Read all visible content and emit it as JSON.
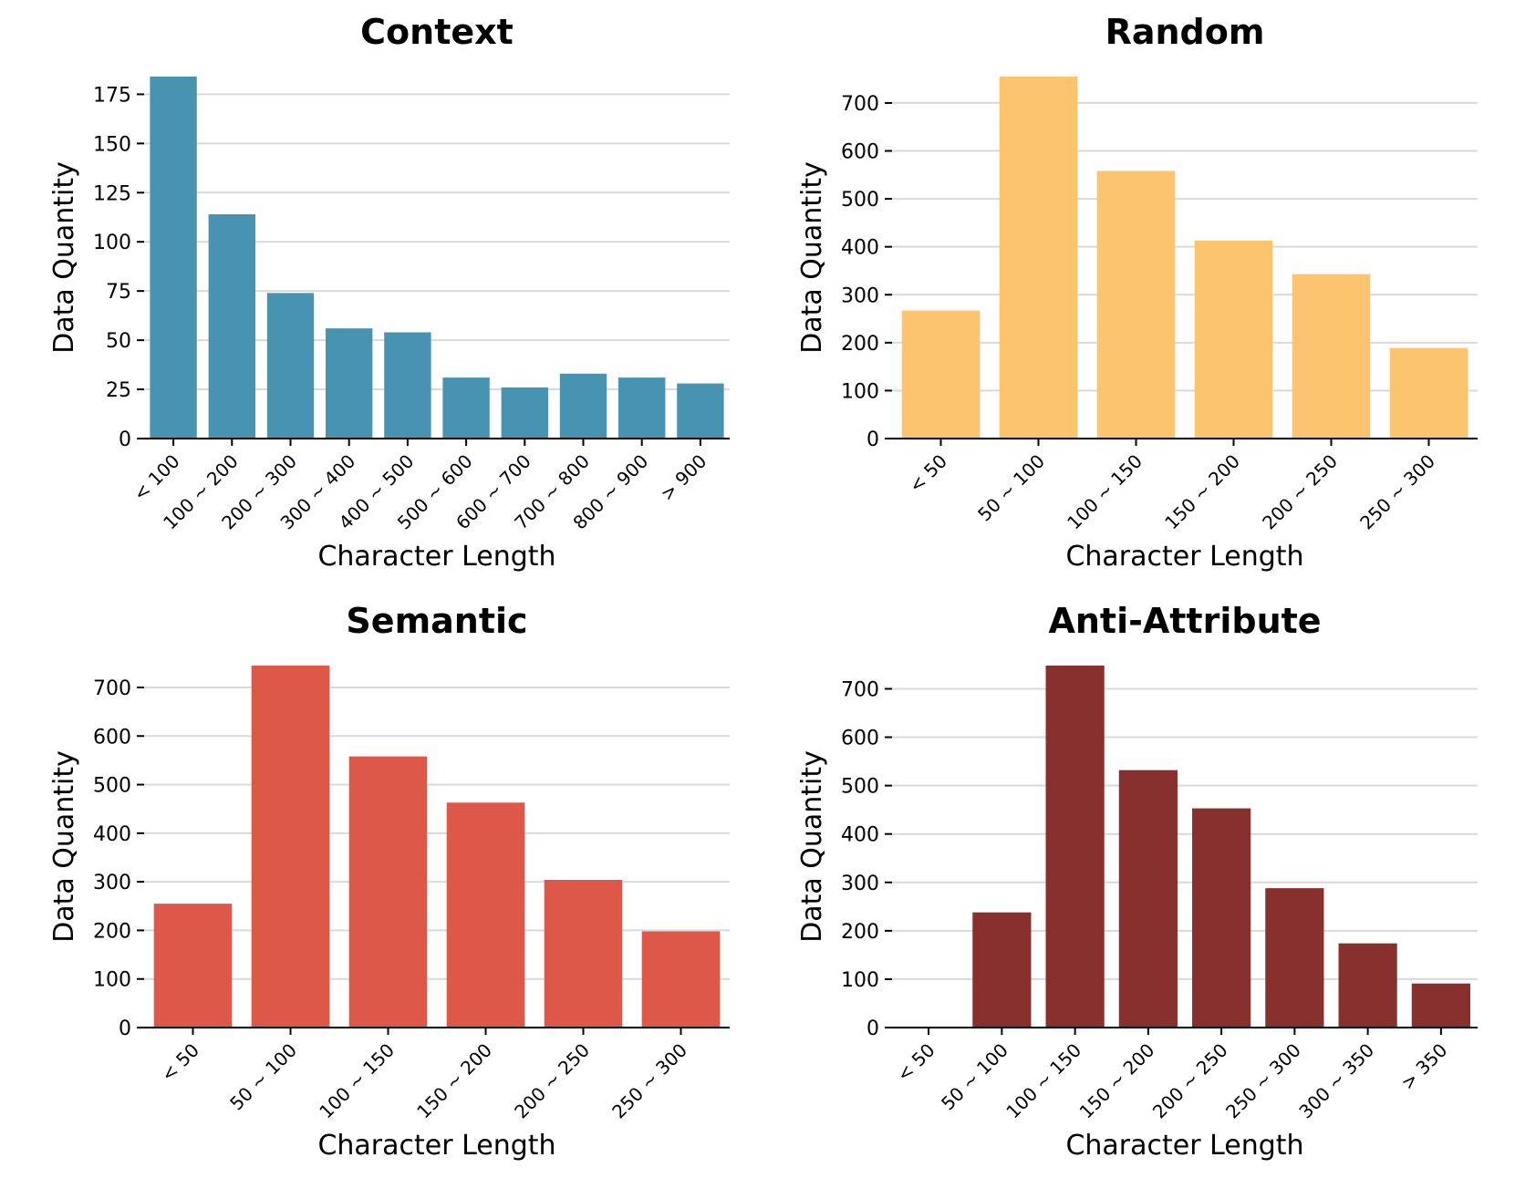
{
  "chart_data": [
    {
      "type": "bar",
      "title": "Context",
      "xlabel": "Character Length",
      "ylabel": "Data Quantity",
      "categories": [
        "< 100",
        "100 ~ 200",
        "200 ~ 300",
        "300 ~ 400",
        "400 ~ 500",
        "500 ~ 600",
        "600 ~ 700",
        "700 ~ 800",
        "800 ~ 900",
        "> 900"
      ],
      "values": [
        184,
        114,
        74,
        56,
        54,
        31,
        26,
        33,
        31,
        28
      ],
      "yticks": [
        0,
        25,
        50,
        75,
        100,
        125,
        150,
        175
      ],
      "ylim": [
        0,
        184
      ],
      "color": "#4893b0",
      "grid": true
    },
    {
      "type": "bar",
      "title": "Random",
      "xlabel": "Character Length",
      "ylabel": "Data Quantity",
      "categories": [
        "< 50",
        "50 ~ 100",
        "100 ~ 150",
        "150 ~ 200",
        "200 ~ 250",
        "250 ~ 300"
      ],
      "values": [
        267,
        755,
        558,
        413,
        343,
        189
      ],
      "yticks": [
        0,
        100,
        200,
        300,
        400,
        500,
        600,
        700
      ],
      "ylim": [
        0,
        755
      ],
      "color": "#fdc46f",
      "grid": true
    },
    {
      "type": "bar",
      "title": "Semantic",
      "xlabel": "Character Length",
      "ylabel": "Data Quantity",
      "categories": [
        "< 50",
        "50 ~ 100",
        "100 ~ 150",
        "150 ~ 200",
        "200 ~ 250",
        "250 ~ 300"
      ],
      "values": [
        255,
        745,
        558,
        463,
        304,
        198
      ],
      "yticks": [
        0,
        100,
        200,
        300,
        400,
        500,
        600,
        700
      ],
      "ylim": [
        0,
        745
      ],
      "color": "#dd5848",
      "grid": true
    },
    {
      "type": "bar",
      "title": "Anti-Attribute",
      "xlabel": "Character Length",
      "ylabel": "Data Quantity",
      "categories": [
        "< 50",
        "50 ~ 100",
        "100 ~ 150",
        "150 ~ 200",
        "200 ~ 250",
        "250 ~ 300",
        "300 ~ 350",
        "> 350"
      ],
      "values": [
        0,
        238,
        748,
        532,
        453,
        288,
        174,
        91
      ],
      "yticks": [
        0,
        100,
        200,
        300,
        400,
        500,
        600,
        700
      ],
      "ylim": [
        0,
        748
      ],
      "color": "#88302d",
      "grid": true
    }
  ]
}
